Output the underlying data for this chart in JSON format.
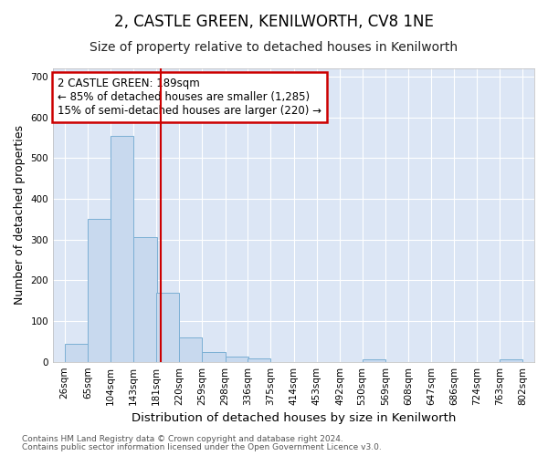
{
  "title": "2, CASTLE GREEN, KENILWORTH, CV8 1NE",
  "subtitle": "Size of property relative to detached houses in Kenilworth",
  "xlabel": "Distribution of detached houses by size in Kenilworth",
  "ylabel": "Number of detached properties",
  "footnote1": "Contains HM Land Registry data © Crown copyright and database right 2024.",
  "footnote2": "Contains public sector information licensed under the Open Government Licence v3.0.",
  "annotation_title": "2 CASTLE GREEN: 189sqm",
  "annotation_line1": "← 85% of detached houses are smaller (1,285)",
  "annotation_line2": "15% of semi-detached houses are larger (220) →",
  "bar_color": "#c8d9ee",
  "bar_edge_color": "#7bafd4",
  "ref_line_color": "#cc0000",
  "ref_line_x": 189,
  "bin_edges": [
    26,
    65,
    104,
    143,
    181,
    220,
    259,
    298,
    336,
    375,
    414,
    453,
    492,
    530,
    569,
    608,
    647,
    686,
    724,
    763,
    802
  ],
  "bin_labels": [
    "26sqm",
    "65sqm",
    "104sqm",
    "143sqm",
    "181sqm",
    "220sqm",
    "259sqm",
    "298sqm",
    "336sqm",
    "375sqm",
    "414sqm",
    "453sqm",
    "492sqm",
    "530sqm",
    "569sqm",
    "608sqm",
    "647sqm",
    "686sqm",
    "724sqm",
    "763sqm",
    "802sqm"
  ],
  "bar_heights": [
    45,
    350,
    555,
    305,
    170,
    60,
    25,
    12,
    8,
    0,
    0,
    0,
    0,
    6,
    0,
    0,
    0,
    0,
    0,
    6
  ],
  "ylim": [
    0,
    720
  ],
  "yticks": [
    0,
    100,
    200,
    300,
    400,
    500,
    600,
    700
  ],
  "background_color": "#ffffff",
  "plot_bg_color": "#dce6f5",
  "grid_color": "#ffffff",
  "title_fontsize": 12,
  "subtitle_fontsize": 10,
  "axis_label_fontsize": 9,
  "tick_fontsize": 7.5,
  "footnote_fontsize": 6.5,
  "annotation_fontsize": 8.5
}
